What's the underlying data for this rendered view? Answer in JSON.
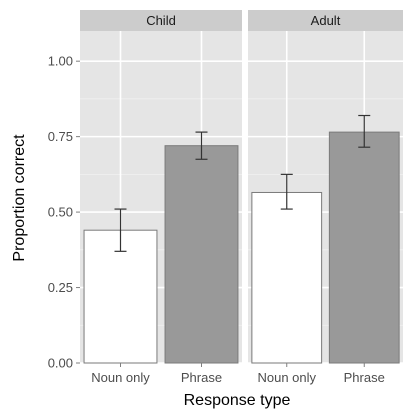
{
  "chart_data": {
    "type": "bar",
    "xlabel": "Response type",
    "ylabel": "Proportion correct",
    "ylim": [
      0,
      1.1
    ],
    "y_ticks": [
      "0.00",
      "0.25",
      "0.50",
      "0.75",
      "1.00"
    ],
    "y_tick_values": [
      0,
      0.25,
      0.5,
      0.75,
      1.0
    ],
    "categories": [
      "Noun only",
      "Phrase"
    ],
    "grid": true,
    "facets": [
      {
        "name": "Child",
        "bars": [
          {
            "category": "Noun only",
            "value": 0.44,
            "err_low": 0.37,
            "err_high": 0.51
          },
          {
            "category": "Phrase",
            "value": 0.72,
            "err_low": 0.675,
            "err_high": 0.765
          }
        ]
      },
      {
        "name": "Adult",
        "bars": [
          {
            "category": "Noun only",
            "value": 0.565,
            "err_low": 0.51,
            "err_high": 0.625
          },
          {
            "category": "Phrase",
            "value": 0.765,
            "err_low": 0.715,
            "err_high": 0.82
          }
        ]
      }
    ],
    "colors": {
      "panel_bg": "#e5e5e5",
      "strip_bg": "#cccccc",
      "grid_major": "#ffffff",
      "grid_minor": "#f2f2f2",
      "noun_only_fill": "#ffffff",
      "phrase_fill": "#999999",
      "bar_outline": "#7a7a7a",
      "error_bar": "#333333"
    }
  }
}
